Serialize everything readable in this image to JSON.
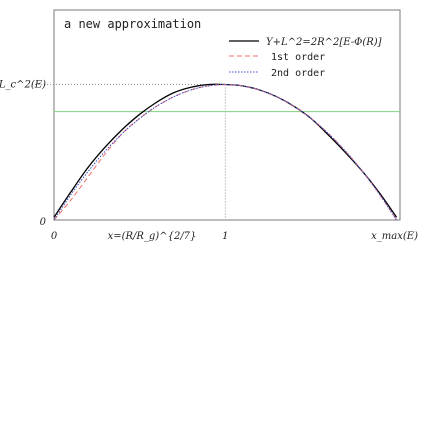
{
  "chart_data": {
    "type": "line",
    "title": "a new approximation",
    "xlabel": "x=(R/R_g)^{2/7}",
    "ylabel": "L_c^2(E)",
    "xlim": [
      0,
      2.02
    ],
    "ylim": [
      0,
      1.55
    ],
    "x_ticks": [
      {
        "value": 0,
        "label": "0"
      },
      {
        "value": 1,
        "label": "1"
      },
      {
        "value": 2,
        "label": "x_max(E)"
      }
    ],
    "y_ticks": [
      {
        "value": 0,
        "label": "0"
      },
      {
        "value": 1,
        "label": "L_c^2(E)"
      }
    ],
    "reference_lines": [
      {
        "orientation": "vertical",
        "value": 1,
        "style": "dotted",
        "color": "#777777"
      },
      {
        "orientation": "horizontal",
        "value": 1,
        "style": "dotted",
        "color": "#777777"
      },
      {
        "orientation": "horizontal",
        "value": 0.8,
        "style": "solid",
        "color": "#7fd07f"
      }
    ],
    "legend_position": "top-right",
    "series": [
      {
        "name": "Y+L^2=2R^2[E-Φ(R)]",
        "style": "solid",
        "color": "#000000",
        "x": [
          0,
          0.1,
          0.2,
          0.3,
          0.4,
          0.5,
          0.6,
          0.7,
          0.8,
          0.9,
          1.0,
          1.1,
          1.2,
          1.3,
          1.4,
          1.5,
          1.6,
          1.7,
          1.8,
          1.9,
          2.0
        ],
        "y": [
          0.02,
          0.21,
          0.39,
          0.54,
          0.67,
          0.78,
          0.87,
          0.94,
          0.98,
          1.0,
          1.0,
          0.99,
          0.96,
          0.91,
          0.84,
          0.75,
          0.63,
          0.5,
          0.36,
          0.2,
          0.02
        ]
      },
      {
        "name": "1st order",
        "style": "dashed",
        "color": "#f07070",
        "x": [
          0,
          0.1,
          0.2,
          0.3,
          0.4,
          0.5,
          0.6,
          0.7,
          0.8,
          0.9,
          1.0,
          1.1,
          1.2,
          1.3,
          1.4,
          1.5,
          1.6,
          1.7,
          1.8,
          1.9,
          2.0
        ],
        "y": [
          0,
          0.15,
          0.32,
          0.49,
          0.64,
          0.75,
          0.84,
          0.91,
          0.96,
          0.99,
          1.0,
          0.99,
          0.96,
          0.91,
          0.84,
          0.75,
          0.64,
          0.51,
          0.36,
          0.19,
          0
        ]
      },
      {
        "name": "2nd order",
        "style": "dotted",
        "color": "#3b48c8",
        "x": [
          0,
          0.1,
          0.2,
          0.3,
          0.4,
          0.5,
          0.6,
          0.7,
          0.8,
          0.9,
          1.0,
          1.1,
          1.2,
          1.3,
          1.4,
          1.5,
          1.6,
          1.7,
          1.8,
          1.9,
          2.0
        ],
        "y": [
          0,
          0.19,
          0.36,
          0.51,
          0.64,
          0.75,
          0.84,
          0.91,
          0.96,
          0.99,
          1.0,
          0.99,
          0.96,
          0.91,
          0.84,
          0.75,
          0.64,
          0.51,
          0.36,
          0.19,
          0
        ]
      }
    ]
  }
}
